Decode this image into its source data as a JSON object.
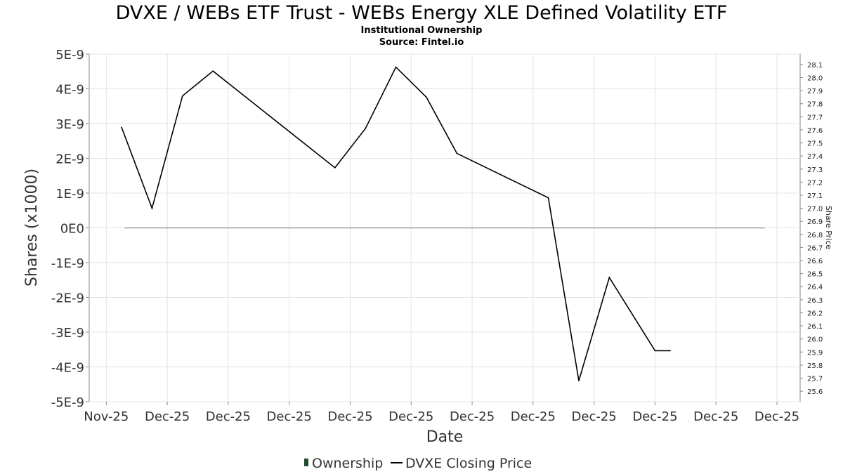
{
  "chart_data": {
    "type": "line",
    "title": "DVXE / WEBs ETF Trust - WEBs Energy XLE Defined Volatility ETF",
    "subtitle": "Institutional Ownership",
    "source": "Source: Fintel.io",
    "xlabel": "Date",
    "ylabel": "Shares (x1000)",
    "y2label": "Share Price",
    "ylim": [
      -5e-09,
      5e-09
    ],
    "y_ticks": [
      "5E-9",
      "4E-9",
      "3E-9",
      "2E-9",
      "1E-9",
      "0E0",
      "-1E-9",
      "-2E-9",
      "-3E-9",
      "-4E-9",
      "-5E-9"
    ],
    "y_tick_values": [
      5e-09,
      4e-09,
      3e-09,
      2e-09,
      1e-09,
      0,
      -1e-09,
      -2e-09,
      -3e-09,
      -4e-09,
      -5e-09
    ],
    "y2lim": [
      25.52,
      28.18
    ],
    "y2_ticks": [
      "28.1",
      "28.0",
      "27.9",
      "27.8",
      "27.7",
      "27.6",
      "27.5",
      "27.4",
      "27.3",
      "27.2",
      "27.1",
      "27.0",
      "26.9",
      "26.8",
      "26.7",
      "26.6",
      "26.5",
      "26.4",
      "26.3",
      "26.2",
      "26.1",
      "26.0",
      "25.9",
      "25.8",
      "25.7",
      "25.6"
    ],
    "y2_tick_values": [
      28.1,
      28.0,
      27.9,
      27.8,
      27.7,
      27.6,
      27.5,
      27.4,
      27.3,
      27.2,
      27.1,
      27.0,
      26.9,
      26.8,
      26.7,
      26.6,
      26.5,
      26.4,
      26.3,
      26.2,
      26.1,
      26.0,
      25.9,
      25.8,
      25.7,
      25.6
    ],
    "xlim": [
      -0.28,
      11.38
    ],
    "x_ticks": [
      "Nov-25",
      "Dec-25",
      "Dec-25",
      "Dec-25",
      "Dec-25",
      "Dec-25",
      "Dec-25",
      "Dec-25",
      "Dec-25",
      "Dec-25",
      "Dec-25",
      "Dec-25"
    ],
    "x_tick_values": [
      0,
      1,
      2,
      3,
      4,
      5,
      6,
      7,
      8,
      9,
      10,
      11
    ],
    "grid": true,
    "legend_position": "bottom-center",
    "series": [
      {
        "name": "Ownership",
        "axis": "left",
        "color": "#1e4d2b",
        "x": [
          0.3,
          10.8
        ],
        "values": [
          0,
          0
        ]
      },
      {
        "name": "DVXE Closing Price",
        "axis": "right",
        "color": "#000000",
        "x": [
          0.25,
          0.75,
          1.25,
          1.75,
          3.75,
          4.25,
          4.75,
          5.25,
          5.75,
          7.25,
          7.75,
          8.25,
          9.0,
          9.25
        ],
        "values": [
          27.62,
          27.0,
          27.86,
          28.05,
          27.31,
          27.61,
          28.08,
          27.85,
          27.42,
          27.08,
          25.68,
          26.47,
          25.91,
          25.91
        ]
      }
    ]
  }
}
